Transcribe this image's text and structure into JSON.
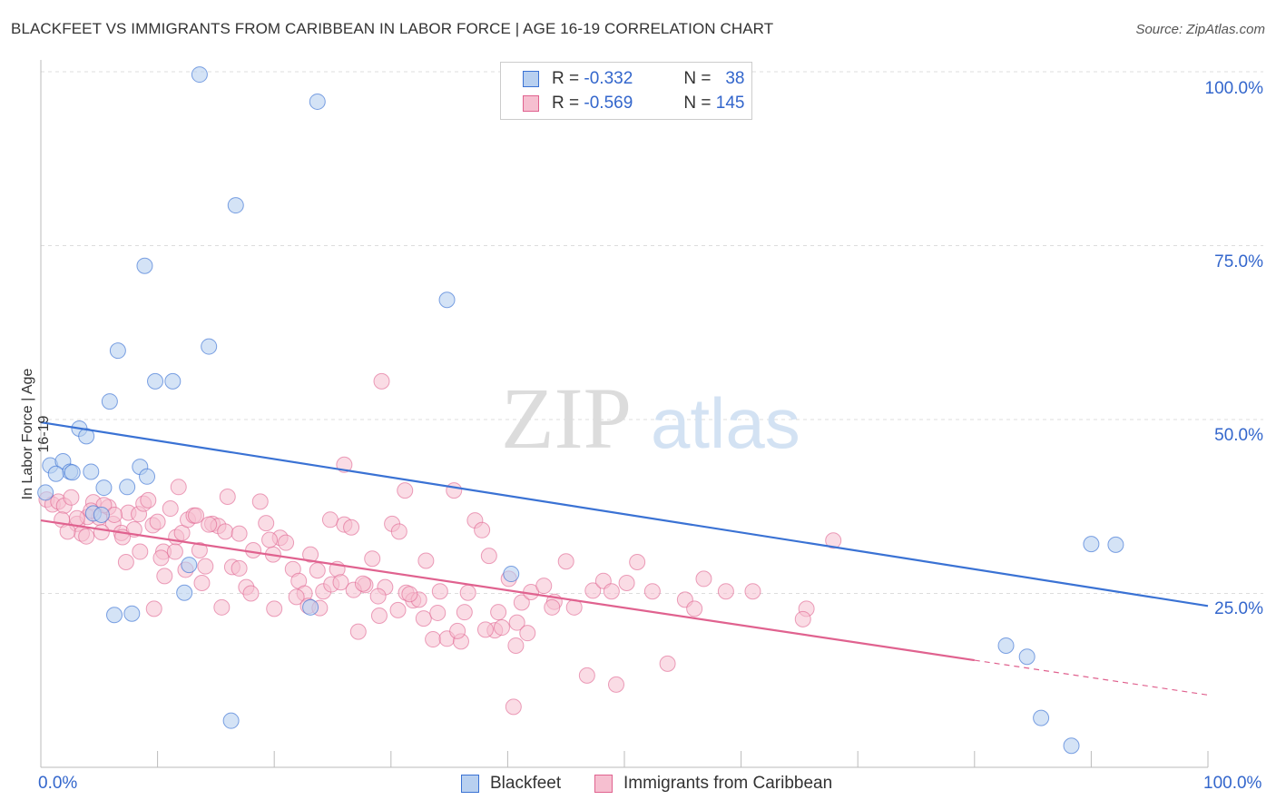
{
  "title": "BLACKFEET VS IMMIGRANTS FROM CARIBBEAN IN LABOR FORCE | AGE 16-19 CORRELATION CHART",
  "source": "Source: ZipAtlas.com",
  "watermark": {
    "zip": "ZIP",
    "atlas": "atlas"
  },
  "legend": {
    "r_label": "R =",
    "n_label": "N =",
    "blackfeet": {
      "r": "-0.332",
      "n": "38"
    },
    "caribbean": {
      "r": "-0.569",
      "n": "145"
    }
  },
  "bottom_legend": {
    "blackfeet": "Blackfeet",
    "caribbean": "Immigrants from Caribbean"
  },
  "colors": {
    "blue": "#3a72d4",
    "blue_fill": "#b8d0f0",
    "pink": "#e0628f",
    "pink_fill": "#f6bfd0",
    "label": "#3366cc"
  },
  "chart_data": {
    "type": "scatter",
    "xlabel": "",
    "ylabel": "In Labor Force | Age 16-19",
    "xlim": [
      0,
      100
    ],
    "ylim": [
      0,
      100
    ],
    "x_tick_labels": [
      "0.0%",
      "100.0%"
    ],
    "y_tick_labels": [
      "25.0%",
      "50.0%",
      "75.0%",
      "100.0%"
    ],
    "y_ticks": [
      25,
      50,
      75,
      100
    ],
    "grid": true,
    "series": [
      {
        "name": "Blackfeet",
        "trend": {
          "x0": 0,
          "y0": 49.6,
          "x1": 100,
          "y1": 23.2
        },
        "points": [
          [
            13.6,
            99.6
          ],
          [
            23.7,
            95.7
          ],
          [
            16.7,
            80.8
          ],
          [
            8.9,
            72.1
          ],
          [
            34.8,
            67.2
          ],
          [
            6.6,
            59.9
          ],
          [
            14.4,
            60.5
          ],
          [
            9.8,
            55.5
          ],
          [
            11.3,
            55.5
          ],
          [
            5.9,
            52.6
          ],
          [
            3.3,
            48.7
          ],
          [
            3.9,
            47.6
          ],
          [
            0.8,
            43.4
          ],
          [
            1.9,
            44.0
          ],
          [
            2.5,
            42.5
          ],
          [
            4.3,
            42.5
          ],
          [
            1.3,
            42.2
          ],
          [
            2.7,
            42.4
          ],
          [
            8.5,
            43.2
          ],
          [
            9.1,
            41.8
          ],
          [
            5.4,
            40.2
          ],
          [
            7.4,
            40.3
          ],
          [
            0.4,
            39.5
          ],
          [
            4.5,
            36.5
          ],
          [
            5.2,
            36.3
          ],
          [
            12.7,
            29.1
          ],
          [
            12.3,
            25.1
          ],
          [
            23.1,
            23.0
          ],
          [
            40.3,
            27.8
          ],
          [
            6.3,
            21.9
          ],
          [
            7.8,
            22.1
          ],
          [
            16.3,
            6.7
          ],
          [
            90.0,
            32.1
          ],
          [
            92.1,
            32.0
          ],
          [
            82.7,
            17.5
          ],
          [
            84.5,
            15.9
          ],
          [
            85.7,
            7.1
          ],
          [
            88.3,
            3.1
          ]
        ]
      },
      {
        "name": "Immigrants from Caribbean",
        "trend": {
          "x0": 0,
          "y0": 35.5,
          "x1": 80,
          "y1": 15.4,
          "dash_to_x": 100,
          "dash_to_y": 10.4
        },
        "points": [
          [
            0.5,
            38.5
          ],
          [
            1.0,
            37.8
          ],
          [
            1.5,
            38.2
          ],
          [
            2.0,
            37.6
          ],
          [
            2.6,
            38.8
          ],
          [
            3.1,
            35.0
          ],
          [
            3.5,
            33.6
          ],
          [
            4.0,
            36.0
          ],
          [
            4.5,
            38.1
          ],
          [
            5.0,
            35.9
          ],
          [
            5.8,
            37.4
          ],
          [
            6.2,
            35.0
          ],
          [
            6.9,
            33.7
          ],
          [
            7.5,
            36.6
          ],
          [
            8.0,
            34.2
          ],
          [
            8.4,
            36.4
          ],
          [
            8.8,
            37.9
          ],
          [
            9.2,
            38.4
          ],
          [
            9.6,
            34.8
          ],
          [
            10.0,
            35.3
          ],
          [
            10.5,
            31.0
          ],
          [
            11.1,
            37.2
          ],
          [
            11.6,
            33.1
          ],
          [
            12.1,
            33.7
          ],
          [
            12.6,
            35.6
          ],
          [
            13.1,
            36.2
          ],
          [
            13.6,
            31.2
          ],
          [
            14.1,
            28.9
          ],
          [
            14.7,
            35.0
          ],
          [
            15.2,
            34.7
          ],
          [
            15.8,
            33.9
          ],
          [
            16.4,
            28.8
          ],
          [
            17.0,
            28.6
          ],
          [
            17.6,
            25.9
          ],
          [
            18.2,
            31.2
          ],
          [
            18.8,
            38.2
          ],
          [
            19.3,
            35.1
          ],
          [
            19.9,
            30.6
          ],
          [
            20.5,
            33.0
          ],
          [
            21.0,
            32.3
          ],
          [
            21.6,
            28.5
          ],
          [
            22.1,
            26.8
          ],
          [
            22.6,
            25.0
          ],
          [
            23.1,
            30.6
          ],
          [
            23.7,
            28.3
          ],
          [
            24.2,
            25.3
          ],
          [
            24.8,
            35.6
          ],
          [
            25.4,
            28.5
          ],
          [
            26.0,
            34.9
          ],
          [
            26.6,
            34.5
          ],
          [
            27.2,
            19.5
          ],
          [
            27.8,
            26.2
          ],
          [
            28.4,
            30.0
          ],
          [
            29.0,
            21.8
          ],
          [
            29.5,
            25.9
          ],
          [
            30.1,
            35.0
          ],
          [
            30.7,
            33.9
          ],
          [
            31.3,
            25.1
          ],
          [
            31.9,
            24.0
          ],
          [
            32.4,
            24.1
          ],
          [
            33.0,
            29.7
          ],
          [
            33.6,
            18.4
          ],
          [
            34.2,
            25.3
          ],
          [
            34.8,
            18.5
          ],
          [
            35.4,
            39.8
          ],
          [
            36.0,
            18.1
          ],
          [
            36.6,
            25.1
          ],
          [
            37.2,
            35.5
          ],
          [
            37.8,
            34.1
          ],
          [
            38.4,
            30.4
          ],
          [
            38.9,
            19.7
          ],
          [
            39.5,
            20.1
          ],
          [
            40.1,
            27.1
          ],
          [
            40.7,
            17.5
          ],
          [
            41.2,
            23.7
          ],
          [
            42.0,
            25.2
          ],
          [
            43.1,
            26.1
          ],
          [
            44.0,
            23.8
          ],
          [
            45.0,
            29.6
          ],
          [
            45.7,
            23.0
          ],
          [
            46.8,
            13.2
          ],
          [
            47.3,
            25.4
          ],
          [
            48.2,
            26.8
          ],
          [
            48.9,
            25.3
          ],
          [
            49.3,
            11.9
          ],
          [
            50.2,
            26.5
          ],
          [
            51.1,
            29.5
          ],
          [
            52.4,
            25.3
          ],
          [
            53.7,
            14.9
          ],
          [
            55.2,
            24.1
          ],
          [
            56.0,
            22.8
          ],
          [
            56.8,
            27.1
          ],
          [
            58.7,
            25.3
          ],
          [
            61.0,
            25.3
          ],
          [
            65.6,
            22.8
          ],
          [
            65.3,
            21.3
          ],
          [
            67.9,
            32.6
          ],
          [
            29.2,
            55.5
          ],
          [
            26.0,
            43.5
          ],
          [
            31.2,
            39.8
          ],
          [
            11.8,
            40.3
          ],
          [
            13.3,
            36.2
          ],
          [
            14.4,
            34.9
          ],
          [
            16.0,
            38.9
          ],
          [
            17.0,
            33.6
          ],
          [
            19.6,
            32.7
          ],
          [
            12.4,
            28.4
          ],
          [
            10.6,
            27.5
          ],
          [
            9.7,
            22.8
          ],
          [
            7.3,
            29.5
          ],
          [
            7.0,
            33.1
          ],
          [
            5.4,
            37.7
          ],
          [
            5.2,
            33.8
          ],
          [
            4.3,
            36.9
          ],
          [
            3.1,
            35.8
          ],
          [
            1.8,
            35.6
          ],
          [
            2.3,
            33.9
          ],
          [
            3.9,
            33.2
          ],
          [
            6.3,
            36.3
          ],
          [
            8.5,
            31.0
          ],
          [
            10.3,
            30.1
          ],
          [
            11.5,
            31.0
          ],
          [
            13.8,
            26.5
          ],
          [
            15.5,
            23.0
          ],
          [
            18.0,
            25.0
          ],
          [
            20.0,
            22.8
          ],
          [
            21.9,
            24.5
          ],
          [
            22.9,
            23.2
          ],
          [
            23.9,
            22.9
          ],
          [
            24.9,
            26.3
          ],
          [
            25.7,
            26.6
          ],
          [
            26.8,
            25.5
          ],
          [
            27.6,
            26.4
          ],
          [
            28.9,
            24.6
          ],
          [
            30.6,
            22.6
          ],
          [
            31.6,
            24.9
          ],
          [
            32.8,
            21.4
          ],
          [
            34.0,
            22.2
          ],
          [
            35.7,
            19.6
          ],
          [
            36.3,
            22.3
          ],
          [
            38.1,
            19.8
          ],
          [
            39.2,
            22.3
          ],
          [
            40.8,
            20.8
          ],
          [
            41.7,
            19.3
          ],
          [
            43.8,
            23.0
          ],
          [
            40.5,
            8.7
          ]
        ]
      }
    ]
  }
}
